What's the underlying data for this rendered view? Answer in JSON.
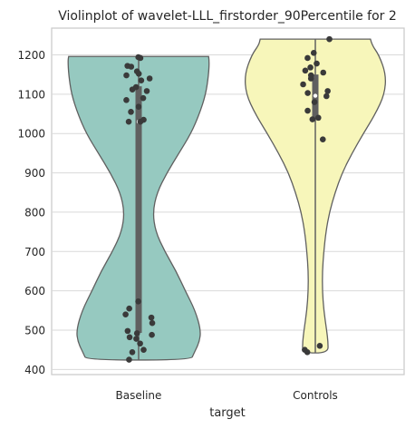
{
  "chart_data": {
    "type": "violin",
    "title": "Violinplot of wavelet-LLL_firstorder_90Percentile for 2",
    "xlabel": "target",
    "ylabel": "",
    "ylim": [
      387,
      1268
    ],
    "yticks": [
      400,
      500,
      600,
      700,
      800,
      900,
      1000,
      1100,
      1200
    ],
    "categories": [
      "Baseline",
      "Controls"
    ],
    "colors": [
      "#96c9c0",
      "#f7f6ba"
    ],
    "groups": [
      {
        "name": "Baseline",
        "color": "#96c9c0",
        "min": 424,
        "max": 1196,
        "q1": 493,
        "median": 1030,
        "q3": 1120,
        "density_y": [
          1196,
          1185,
          1150,
          1100,
          1050,
          1000,
          950,
          900,
          850,
          800,
          750,
          700,
          650,
          600,
          550,
          500,
          470,
          440,
          424
        ],
        "density_w": [
          0.99,
          1.0,
          0.99,
          0.95,
          0.86,
          0.74,
          0.57,
          0.4,
          0.26,
          0.2,
          0.24,
          0.37,
          0.53,
          0.66,
          0.8,
          0.88,
          0.86,
          0.78,
          0.74
        ],
        "points": [
          1194,
          1192,
          1172,
          1170,
          1158,
          1152,
          1148,
          1140,
          1135,
          1118,
          1112,
          1108,
          1090,
          1085,
          1068,
          1055,
          1035,
          1030,
          1030,
          573,
          555,
          540,
          532,
          518,
          498,
          492,
          488,
          482,
          478,
          466,
          450,
          444,
          425
        ]
      },
      {
        "name": "Controls",
        "color": "#f7f6ba",
        "min": 442,
        "max": 1240,
        "q1": 1040,
        "median": 1096,
        "q3": 1150,
        "density_y": [
          1240,
          1225,
          1200,
          1150,
          1100,
          1050,
          1000,
          950,
          900,
          850,
          800,
          750,
          700,
          650,
          600,
          550,
          500,
          470,
          442
        ],
        "density_w": [
          0.78,
          0.8,
          0.9,
          1.0,
          0.98,
          0.85,
          0.68,
          0.52,
          0.38,
          0.28,
          0.2,
          0.15,
          0.12,
          0.1,
          0.1,
          0.12,
          0.16,
          0.18,
          0.18
        ],
        "points": [
          1240,
          1205,
          1192,
          1178,
          1168,
          1160,
          1155,
          1148,
          1140,
          1125,
          1108,
          1103,
          1095,
          1080,
          1058,
          1040,
          1036,
          985,
          460,
          450,
          444
        ]
      }
    ]
  }
}
